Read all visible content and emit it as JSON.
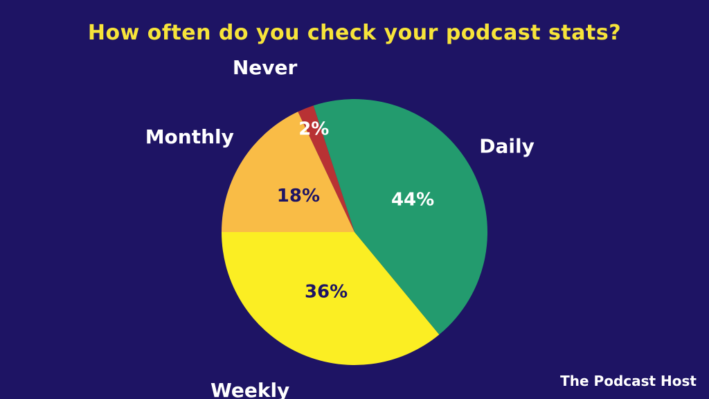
{
  "chart_data": {
    "type": "pie",
    "title": "How often do you check your podcast stats?",
    "slices": [
      {
        "label": "Weekly",
        "value": 36,
        "value_label": "36%",
        "color": "#fbee23",
        "text_color": "#1e1464"
      },
      {
        "label": "Daily",
        "value": 44,
        "value_label": "44%",
        "color": "#239b6e",
        "text_color": "#ffffff"
      },
      {
        "label": "Never",
        "value": 2,
        "value_label": "2%",
        "color": "#b83234",
        "text_color": "#ffffff"
      },
      {
        "label": "Monthly",
        "value": 18,
        "value_label": "18%",
        "color": "#f9bc46",
        "text_color": "#1e1464"
      }
    ],
    "start_direction": "left",
    "direction": "counterclockwise"
  },
  "branding": {
    "text": "The Podcast Host",
    "color": "#ffffff"
  },
  "colors": {
    "background": "#1e1464",
    "title": "#f7e43a"
  }
}
